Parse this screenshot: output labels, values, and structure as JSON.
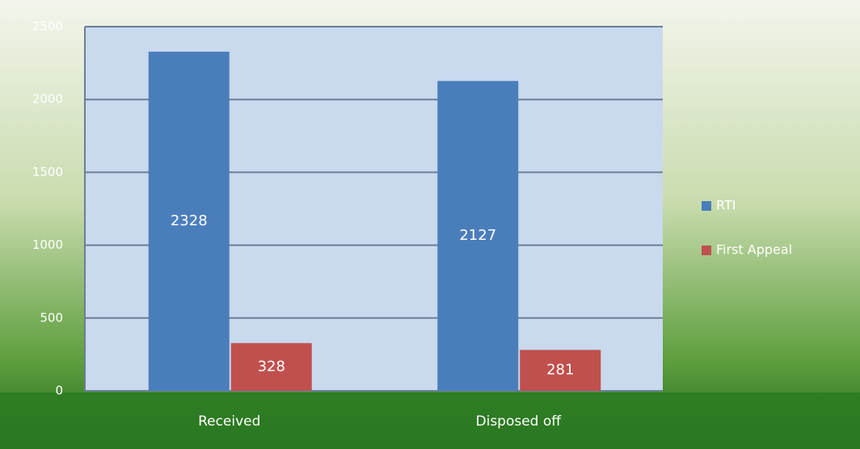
{
  "chart_data": {
    "type": "bar",
    "categories": [
      "Received",
      "Disposed off"
    ],
    "series": [
      {
        "name": "RTI",
        "color": "#4a7ebb",
        "values": [
          2328,
          2127
        ]
      },
      {
        "name": "First Appeal",
        "color": "#c0504d",
        "values": [
          328,
          281
        ]
      }
    ],
    "ylim": [
      0,
      2500
    ],
    "yticks": [
      0,
      500,
      1000,
      1500,
      2000,
      2500
    ],
    "grid": true,
    "legend": "right"
  }
}
